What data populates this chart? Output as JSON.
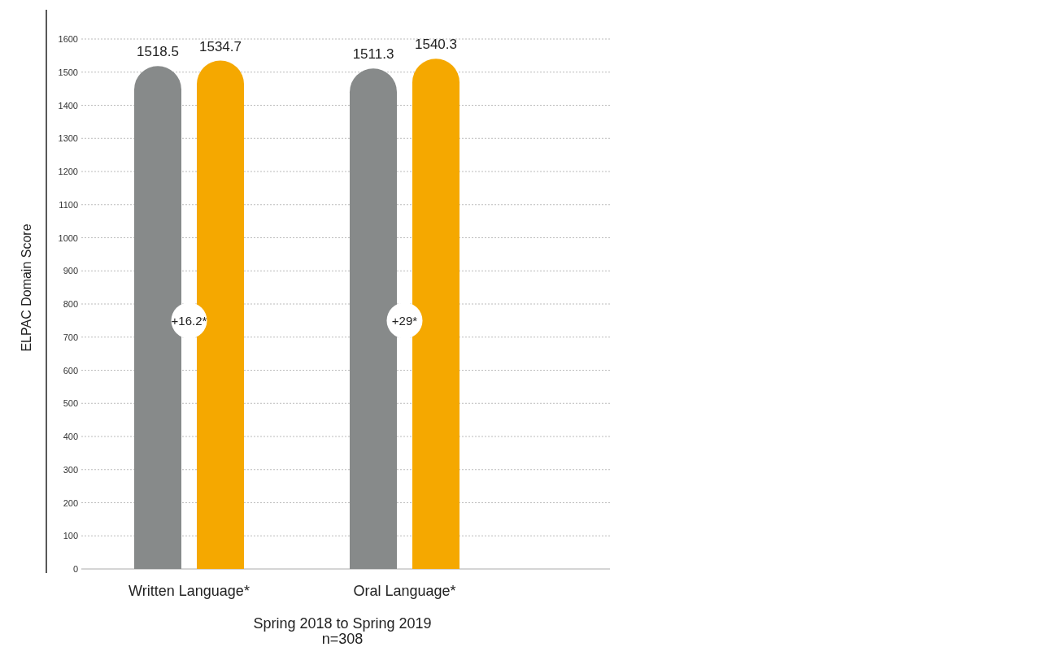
{
  "chart_data": {
    "type": "bar",
    "ylabel": "ELPAC Domain Score",
    "xlabel": "Spring 2018 to Spring 2019\nn=308",
    "categories": [
      "Written Language*",
      "Oral Language*"
    ],
    "series": [
      {
        "color": "#878a8a",
        "values": [
          1518.5,
          1511.3
        ]
      },
      {
        "color": "#f5a800",
        "values": [
          1534.7,
          1540.3
        ]
      }
    ],
    "ylim": [
      0,
      1600
    ],
    "yticks": [
      0,
      100,
      200,
      300,
      400,
      500,
      600,
      700,
      800,
      900,
      1000,
      1100,
      1200,
      1300,
      1400,
      1500,
      1600
    ],
    "grid": "y",
    "data_labels": true,
    "annotations": [
      "+16.2*",
      "+29*"
    ]
  }
}
